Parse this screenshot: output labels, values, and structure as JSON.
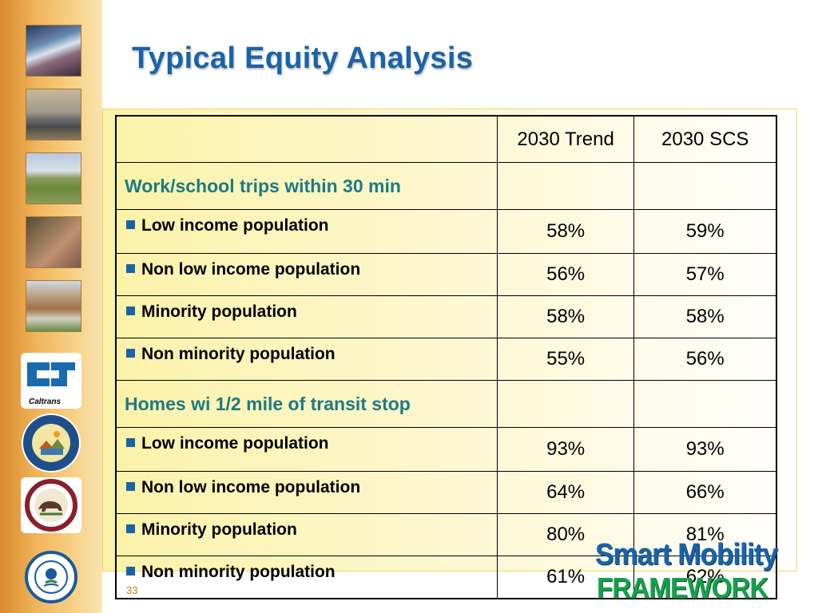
{
  "title": "Typical Equity Analysis",
  "page_number": "33",
  "brand": {
    "line1": "Smart Mobility",
    "line2": "FRAMEWORK"
  },
  "sidebar": {
    "photos": [
      "traffic-photo",
      "truck-photo",
      "highway-landscape-photo",
      "pedestrian-photo",
      "housing-photo"
    ],
    "logos": [
      {
        "name": "caltrans-logo",
        "text": "Caltrans"
      },
      {
        "name": "housing-community-development-seal",
        "text": "HOUSING AND COMMUNITY DEVELOPMENT · CALIFORNIA"
      },
      {
        "name": "governors-office-planning-research-seal",
        "text": "GOVERNOR'S OFFICE OF PLANNING AND RESEARCH · STATE OF CALIFORNIA"
      },
      {
        "name": "epa-seal",
        "text": "UNITED STATES ENVIRONMENTAL PROTECTION"
      }
    ]
  },
  "table": {
    "headers": [
      "",
      "2030 Trend",
      "2030 SCS"
    ],
    "sections": [
      {
        "label": "Work/school trips within 30 min",
        "rows": [
          {
            "label": "Low income population",
            "trend": "58%",
            "scs": "59%"
          },
          {
            "label": "Non low income population",
            "trend": "56%",
            "scs": "57%"
          },
          {
            "label": "Minority population",
            "trend": "58%",
            "scs": "58%"
          },
          {
            "label": "Non minority population",
            "trend": "55%",
            "scs": "56%"
          }
        ]
      },
      {
        "label": "Homes wi 1/2 mile of transit stop",
        "rows": [
          {
            "label": "Low income population",
            "trend": "93%",
            "scs": "93%"
          },
          {
            "label": "Non low income population",
            "trend": "64%",
            "scs": "66%"
          },
          {
            "label": "Minority population",
            "trend": "80%",
            "scs": "81%"
          },
          {
            "label": "Non minority population",
            "trend": "61%",
            "scs": "62%"
          }
        ]
      }
    ]
  }
}
